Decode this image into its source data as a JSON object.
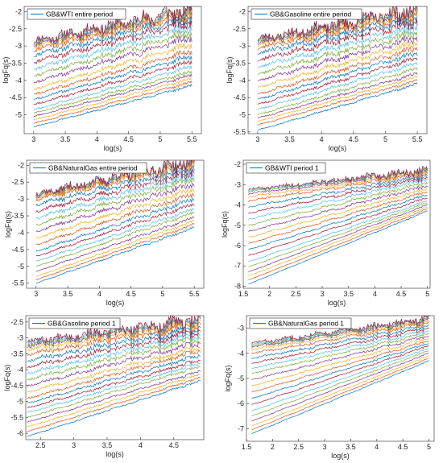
{
  "figure": {
    "axis_color": "#262626",
    "line_colors": [
      "#0072BD",
      "#D95319",
      "#EDB120",
      "#7E2F8E",
      "#77AC30",
      "#4DBEEE",
      "#A2142F"
    ]
  },
  "chart_data": [
    {
      "type": "line",
      "title": "",
      "legend": "GB&WTI entire period",
      "legend_placement": "top-left",
      "xlabel": "log(s)",
      "ylabel": "logFq(s)",
      "xlim": [
        2.85,
        5.65
      ],
      "ylim": [
        -5.55,
        -1.85
      ],
      "xticks": [
        3,
        3.5,
        4,
        4.5,
        5,
        5.5
      ],
      "xtick_labels": [
        "3",
        "3.5",
        "4",
        "4.5",
        "5",
        "5.5"
      ],
      "yticks": [
        -5,
        -4.5,
        -4,
        -3.5,
        -3,
        -2.5,
        -2
      ],
      "ytick_labels": [
        "-5",
        "-4.5",
        "-4",
        "-3.5",
        "-3",
        "-2.5",
        "-2"
      ],
      "grid": false,
      "x_range": [
        3.0,
        5.5
      ],
      "series_count": 21,
      "series_start": [
        -5.35,
        -5.25,
        -5.15,
        -5.05,
        -4.95,
        -4.85,
        -4.7,
        -4.55,
        -4.4,
        -4.25,
        -4.05,
        -3.85,
        -3.65,
        -3.45,
        -3.25,
        -3.1,
        -3.0,
        -2.95,
        -2.9,
        -2.88,
        -2.85
      ],
      "series_end": [
        -4.15,
        -4.05,
        -3.95,
        -3.85,
        -3.75,
        -3.6,
        -3.45,
        -3.3,
        -3.15,
        -2.95,
        -2.75,
        -2.6,
        -2.45,
        -2.3,
        -2.2,
        -2.1,
        -2.05,
        -2.0,
        -1.98,
        -1.95,
        -1.92
      ],
      "noise_amplitude": 0.35,
      "seed": 11
    },
    {
      "type": "line",
      "title": "",
      "legend": "GB&Gasoline entire period",
      "legend_placement": "top-left",
      "xlabel": "log(s)",
      "ylabel": "logFq(s)",
      "xlim": [
        2.85,
        5.65
      ],
      "ylim": [
        -5.55,
        -1.85
      ],
      "xticks": [
        3,
        3.5,
        4,
        4.5,
        5,
        5.5
      ],
      "xtick_labels": [
        "3",
        "3.5",
        "4",
        "4.5",
        "5",
        "5.5"
      ],
      "yticks": [
        -5.5,
        -5,
        -4.5,
        -4,
        -3.5,
        -3,
        -2.5,
        -2
      ],
      "ytick_labels": [
        "-5.5",
        "-5",
        "-4.5",
        "-4",
        "-3.5",
        "-3",
        "-2.5",
        "-2"
      ],
      "grid": false,
      "x_range": [
        3.0,
        5.5
      ],
      "series_count": 21,
      "series_start": [
        -5.45,
        -5.3,
        -5.2,
        -5.1,
        -5.0,
        -4.85,
        -4.7,
        -4.55,
        -4.4,
        -4.2,
        -4.0,
        -3.8,
        -3.6,
        -3.4,
        -3.2,
        -3.05,
        -2.95,
        -2.9,
        -2.85,
        -2.82,
        -2.8
      ],
      "series_end": [
        -4.1,
        -4.0,
        -3.9,
        -3.8,
        -3.65,
        -3.5,
        -3.35,
        -3.2,
        -3.05,
        -2.9,
        -2.75,
        -2.6,
        -2.45,
        -2.3,
        -2.2,
        -2.1,
        -2.05,
        -2.0,
        -1.97,
        -1.95,
        -1.92
      ],
      "noise_amplitude": 0.35,
      "seed": 23
    },
    {
      "type": "line",
      "title": "",
      "legend": "GB&NaturalGas entire period",
      "legend_placement": "top-left",
      "xlabel": "log(s)",
      "ylabel": "logFq(s)",
      "xlim": [
        2.85,
        5.65
      ],
      "ylim": [
        -5.65,
        -1.85
      ],
      "xticks": [
        3,
        3.5,
        4,
        4.5,
        5,
        5.5
      ],
      "xtick_labels": [
        "3",
        "3.5",
        "4",
        "4.5",
        "5",
        "5.5"
      ],
      "yticks": [
        -5.5,
        -5,
        -4.5,
        -4,
        -3.5,
        -3,
        -2.5,
        -2
      ],
      "ytick_labels": [
        "-5.5",
        "-5",
        "-4.5",
        "-4",
        "-3.5",
        "-3",
        "-2.5",
        "-2"
      ],
      "grid": false,
      "x_range": [
        3.0,
        5.5
      ],
      "series_count": 21,
      "series_start": [
        -5.5,
        -5.4,
        -5.3,
        -5.15,
        -5.0,
        -4.85,
        -4.7,
        -4.55,
        -4.35,
        -4.15,
        -3.95,
        -3.75,
        -3.55,
        -3.35,
        -3.15,
        -3.0,
        -2.95,
        -2.9,
        -2.88,
        -2.86,
        -2.85
      ],
      "series_end": [
        -3.85,
        -3.75,
        -3.65,
        -3.55,
        -3.4,
        -3.3,
        -3.15,
        -3.0,
        -2.85,
        -2.7,
        -2.55,
        -2.4,
        -2.3,
        -2.2,
        -2.1,
        -2.0,
        -1.95,
        -1.92,
        -1.9,
        -1.88,
        -1.86
      ],
      "noise_amplitude": 0.3,
      "seed": 37
    },
    {
      "type": "line",
      "title": "",
      "legend": "GB&WTI period 1",
      "legend_placement": "top-left",
      "xlabel": "log(s)",
      "ylabel": "logFq(s)",
      "xlim": [
        1.5,
        5.05
      ],
      "ylim": [
        -8.1,
        -1.8
      ],
      "xticks": [
        1.5,
        2,
        2.5,
        3,
        3.5,
        4,
        4.5,
        5
      ],
      "xtick_labels": [
        "1.5",
        "2",
        "2.5",
        "3",
        "3.5",
        "4",
        "4.5",
        "5"
      ],
      "yticks": [
        -8,
        -7,
        -6,
        -5,
        -4,
        -3,
        -2
      ],
      "ytick_labels": [
        "-8",
        "-7",
        "-6",
        "-5",
        "-4",
        "-3",
        "-2"
      ],
      "grid": false,
      "x_range": [
        1.6,
        5.0
      ],
      "series_count": 21,
      "series_start": [
        -7.9,
        -7.7,
        -7.5,
        -7.3,
        -7.05,
        -6.8,
        -6.5,
        -6.2,
        -5.9,
        -5.6,
        -5.3,
        -5.0,
        -4.7,
        -4.4,
        -4.1,
        -3.8,
        -3.6,
        -3.45,
        -3.35,
        -3.3,
        -3.25
      ],
      "series_end": [
        -4.3,
        -4.2,
        -4.1,
        -4.0,
        -3.9,
        -3.8,
        -3.65,
        -3.5,
        -3.35,
        -3.2,
        -3.05,
        -2.9,
        -2.75,
        -2.65,
        -2.55,
        -2.45,
        -2.4,
        -2.35,
        -2.32,
        -2.3,
        -2.28
      ],
      "noise_amplitude": 0.25,
      "seed": 51
    },
    {
      "type": "line",
      "title": "",
      "legend": "GB&Gasoline period 1",
      "legend_placement": "top-left",
      "xlabel": "log(s)",
      "ylabel": "logFq(s)",
      "xlim": [
        2.28,
        4.95
      ],
      "ylim": [
        -6.2,
        -2.3
      ],
      "xticks": [
        2.5,
        3,
        3.5,
        4,
        4.5
      ],
      "xtick_labels": [
        "2.5",
        "3",
        "3.5",
        "4",
        "4.5"
      ],
      "yticks": [
        -6,
        -5.5,
        -5,
        -4.5,
        -4,
        -3.5,
        -3,
        -2.5
      ],
      "ytick_labels": [
        "-6",
        "-5.5",
        "-5",
        "-4.5",
        "-4",
        "-3.5",
        "-3",
        "-2.5"
      ],
      "grid": false,
      "x_range": [
        2.3,
        4.9
      ],
      "series_count": 21,
      "series_start": [
        -6.1,
        -5.95,
        -5.8,
        -5.65,
        -5.5,
        -5.35,
        -5.2,
        -5.05,
        -4.9,
        -4.7,
        -4.5,
        -4.3,
        -4.1,
        -3.9,
        -3.7,
        -3.5,
        -3.35,
        -3.25,
        -3.2,
        -3.15,
        -3.1
      ],
      "series_end": [
        -4.35,
        -4.25,
        -4.15,
        -4.05,
        -3.9,
        -3.8,
        -3.7,
        -3.55,
        -3.4,
        -3.3,
        -3.15,
        -3.0,
        -2.9,
        -2.8,
        -2.7,
        -2.6,
        -2.55,
        -2.5,
        -2.47,
        -2.45,
        -2.42
      ],
      "noise_amplitude": 0.3,
      "seed": 67
    },
    {
      "type": "line",
      "title": "",
      "legend": "GB&NaturalGas period 1",
      "legend_placement": "top-left",
      "xlabel": "log(s)",
      "ylabel": "logFq(s)",
      "xlim": [
        1.5,
        5.1
      ],
      "ylim": [
        -7.5,
        -2.5
      ],
      "xticks": [
        1.5,
        2,
        2.5,
        3,
        3.5,
        4,
        4.5,
        5
      ],
      "xtick_labels": [
        "1.5",
        "2",
        "2.5",
        "3",
        "3.5",
        "4",
        "4.5",
        "5"
      ],
      "yticks": [
        -7,
        -6,
        -5,
        -4,
        -3
      ],
      "ytick_labels": [
        "-7",
        "-6",
        "-5",
        "-4",
        "-3"
      ],
      "grid": false,
      "x_range": [
        1.6,
        5.0
      ],
      "series_count": 21,
      "series_start": [
        -7.2,
        -7.05,
        -6.9,
        -6.7,
        -6.5,
        -6.3,
        -6.05,
        -5.8,
        -5.55,
        -5.3,
        -5.05,
        -4.8,
        -4.6,
        -4.4,
        -4.2,
        -4.0,
        -3.85,
        -3.75,
        -3.7,
        -3.65,
        -3.6
      ],
      "series_end": [
        -4.3,
        -4.2,
        -4.1,
        -4.0,
        -3.9,
        -3.8,
        -3.7,
        -3.6,
        -3.5,
        -3.4,
        -3.3,
        -3.2,
        -3.1,
        -3.0,
        -2.9,
        -2.8,
        -2.75,
        -2.7,
        -2.67,
        -2.65,
        -2.62
      ],
      "noise_amplitude": 0.2,
      "seed": 83
    }
  ]
}
